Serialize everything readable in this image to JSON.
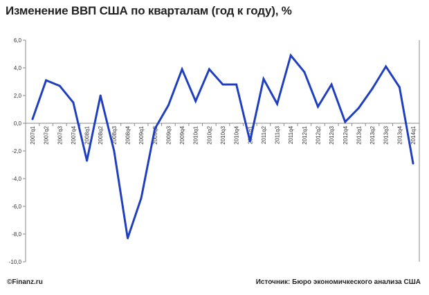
{
  "title": "Изменение ВВП США по кварталам (год к году), %",
  "footer": {
    "left": "©Finanz.ru",
    "right": "Источник: Бюро экономичкеского анализа США"
  },
  "chart_data": {
    "type": "line",
    "title": "Изменение ВВП США по кварталам (год к году), %",
    "xlabel": "",
    "ylabel": "",
    "ylim": [
      -10,
      6
    ],
    "ytick_step": 2,
    "ytick_labels": [
      "6,0",
      "4,0",
      "2,0",
      "0,0",
      "-2,0",
      "-4,0",
      "-6,0",
      "-8,0",
      "-10,0"
    ],
    "grid": false,
    "legend": "none",
    "line_color": "#1f3fbf",
    "categories": [
      "2007q1",
      "2007q2",
      "2007q3",
      "2007q4",
      "2008q1",
      "2008q2",
      "2008q3",
      "2008q4",
      "2009q1",
      "2009q2",
      "2009q3",
      "2009q4",
      "2010q1",
      "2010q2",
      "2010q3",
      "2010q4",
      "2011q1",
      "2011q2",
      "2011q3",
      "2011q4",
      "2012q1",
      "2012q2",
      "2012q3",
      "2012q4",
      "2013q1",
      "2013q2",
      "2013q3",
      "2013q4",
      "2014q1"
    ],
    "series": [
      {
        "values": [
          0.3,
          3.1,
          2.7,
          1.5,
          -2.7,
          2.0,
          -2.0,
          -8.3,
          -5.4,
          -0.4,
          1.3,
          3.9,
          1.6,
          3.9,
          2.8,
          2.8,
          -1.3,
          3.2,
          1.4,
          4.9,
          3.7,
          1.2,
          2.8,
          0.1,
          1.1,
          2.5,
          4.1,
          2.6,
          -2.9
        ]
      }
    ]
  }
}
